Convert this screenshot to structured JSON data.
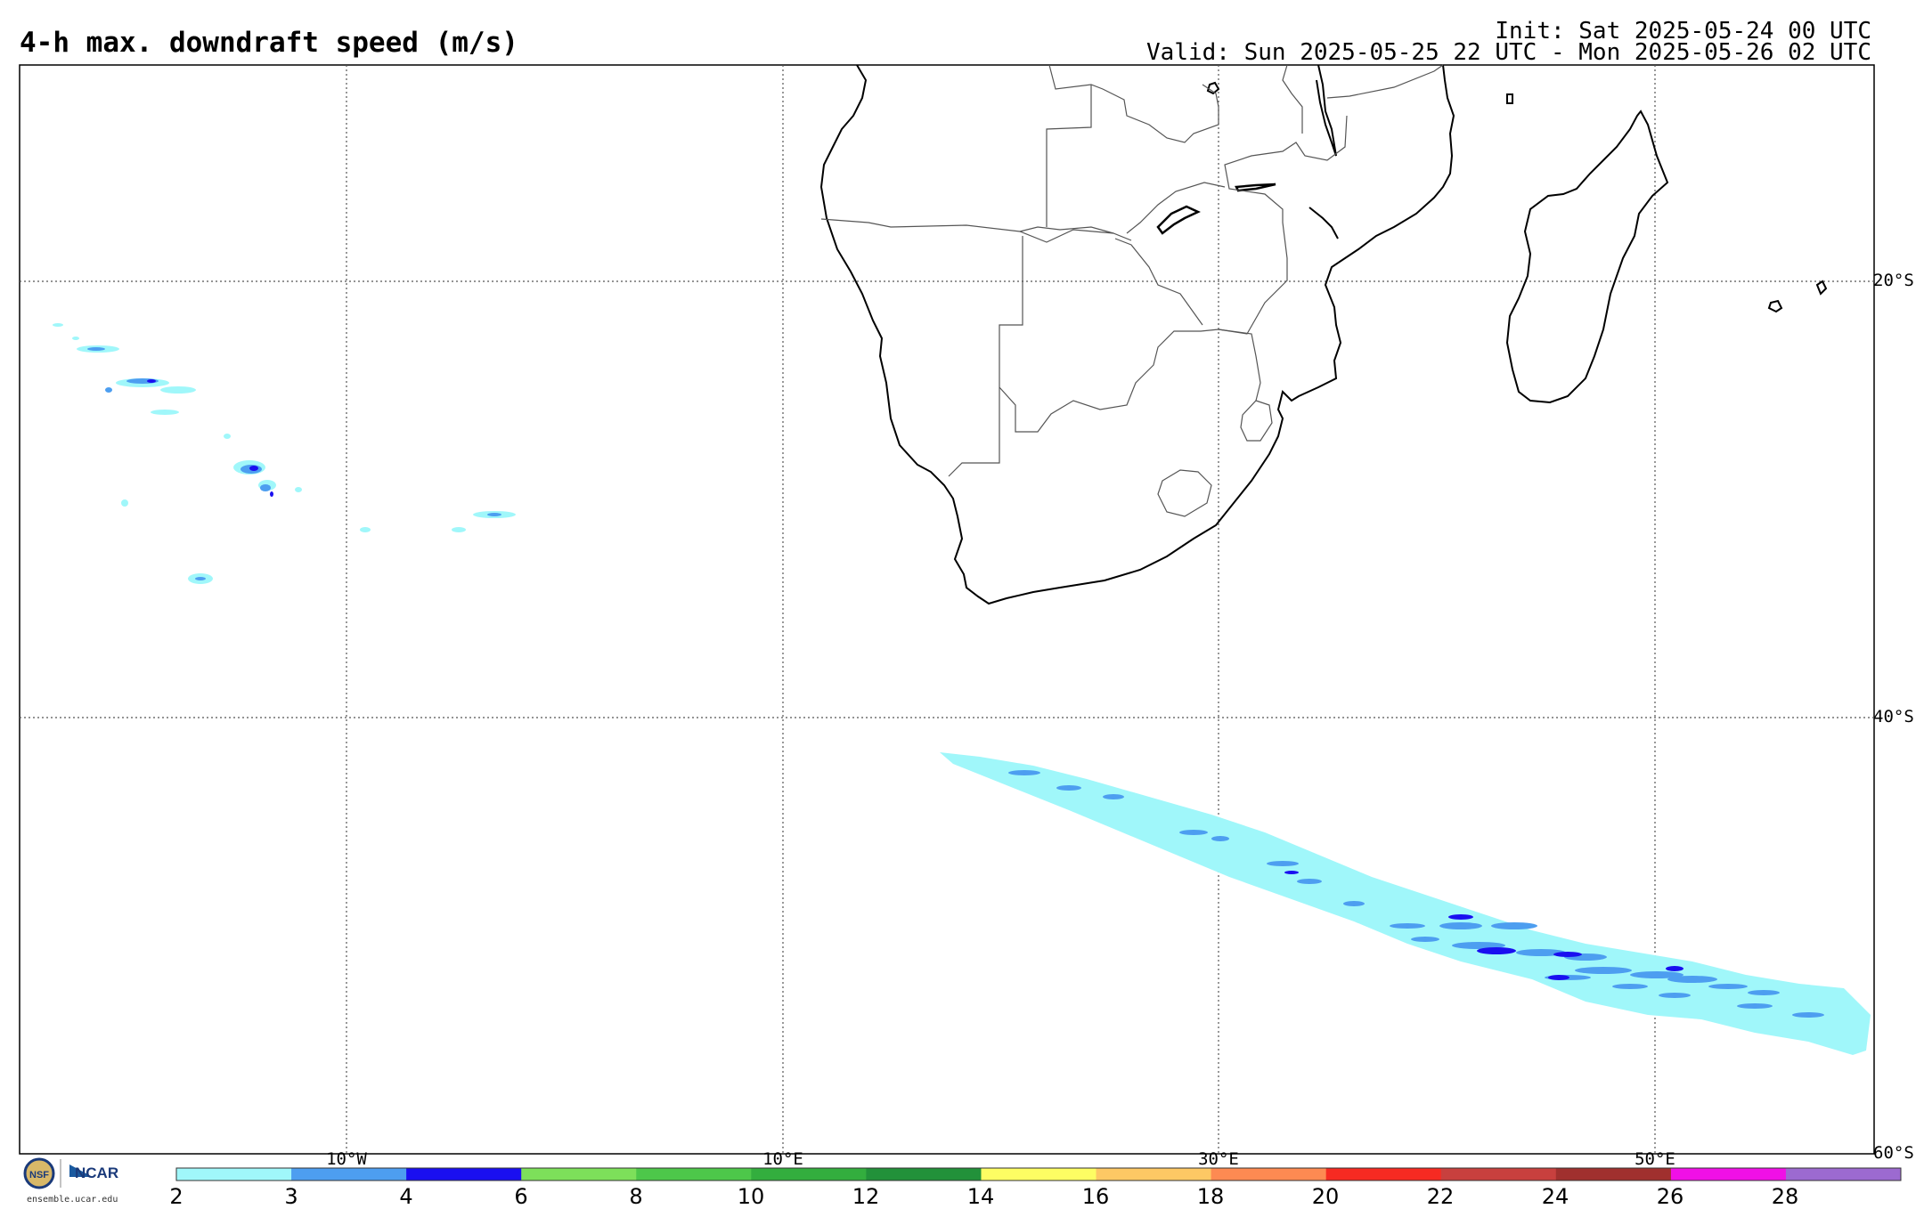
{
  "header": {
    "title": "4-h max. downdraft speed (m/s)",
    "init": "Init: Sat 2025-05-24 00 UTC",
    "valid": "Valid: Sun 2025-05-25 22 UTC - Mon 2025-05-26 02 UTC"
  },
  "grid": {
    "lat_labels": [
      "20°S",
      "40°S",
      "60°S"
    ],
    "lon_labels": [
      "10°W",
      "10°E",
      "30°E",
      "50°E"
    ]
  },
  "colorbar": {
    "tick_labels": [
      "2",
      "3",
      "4",
      "6",
      "8",
      "10",
      "12",
      "14",
      "16",
      "18",
      "20",
      "22",
      "24",
      "26",
      "28"
    ],
    "colors": [
      "#a0f7fa",
      "#4d9ef0",
      "#1a0ff0",
      "#7de05a",
      "#4dc74a",
      "#33ae3e",
      "#22913a",
      "#fdfd63",
      "#fdc864",
      "#fd8a52",
      "#f62a22",
      "#c8403e",
      "#a0302e",
      "#f010e6",
      "#9c6ad0"
    ]
  },
  "footer": {
    "logo_text": "NCAR",
    "site": "ensemble.ucar.edu"
  },
  "legend_colors": {
    "light": "#a0f7fa",
    "medium": "#4d9ef0",
    "dark": "#1a0ff0"
  }
}
